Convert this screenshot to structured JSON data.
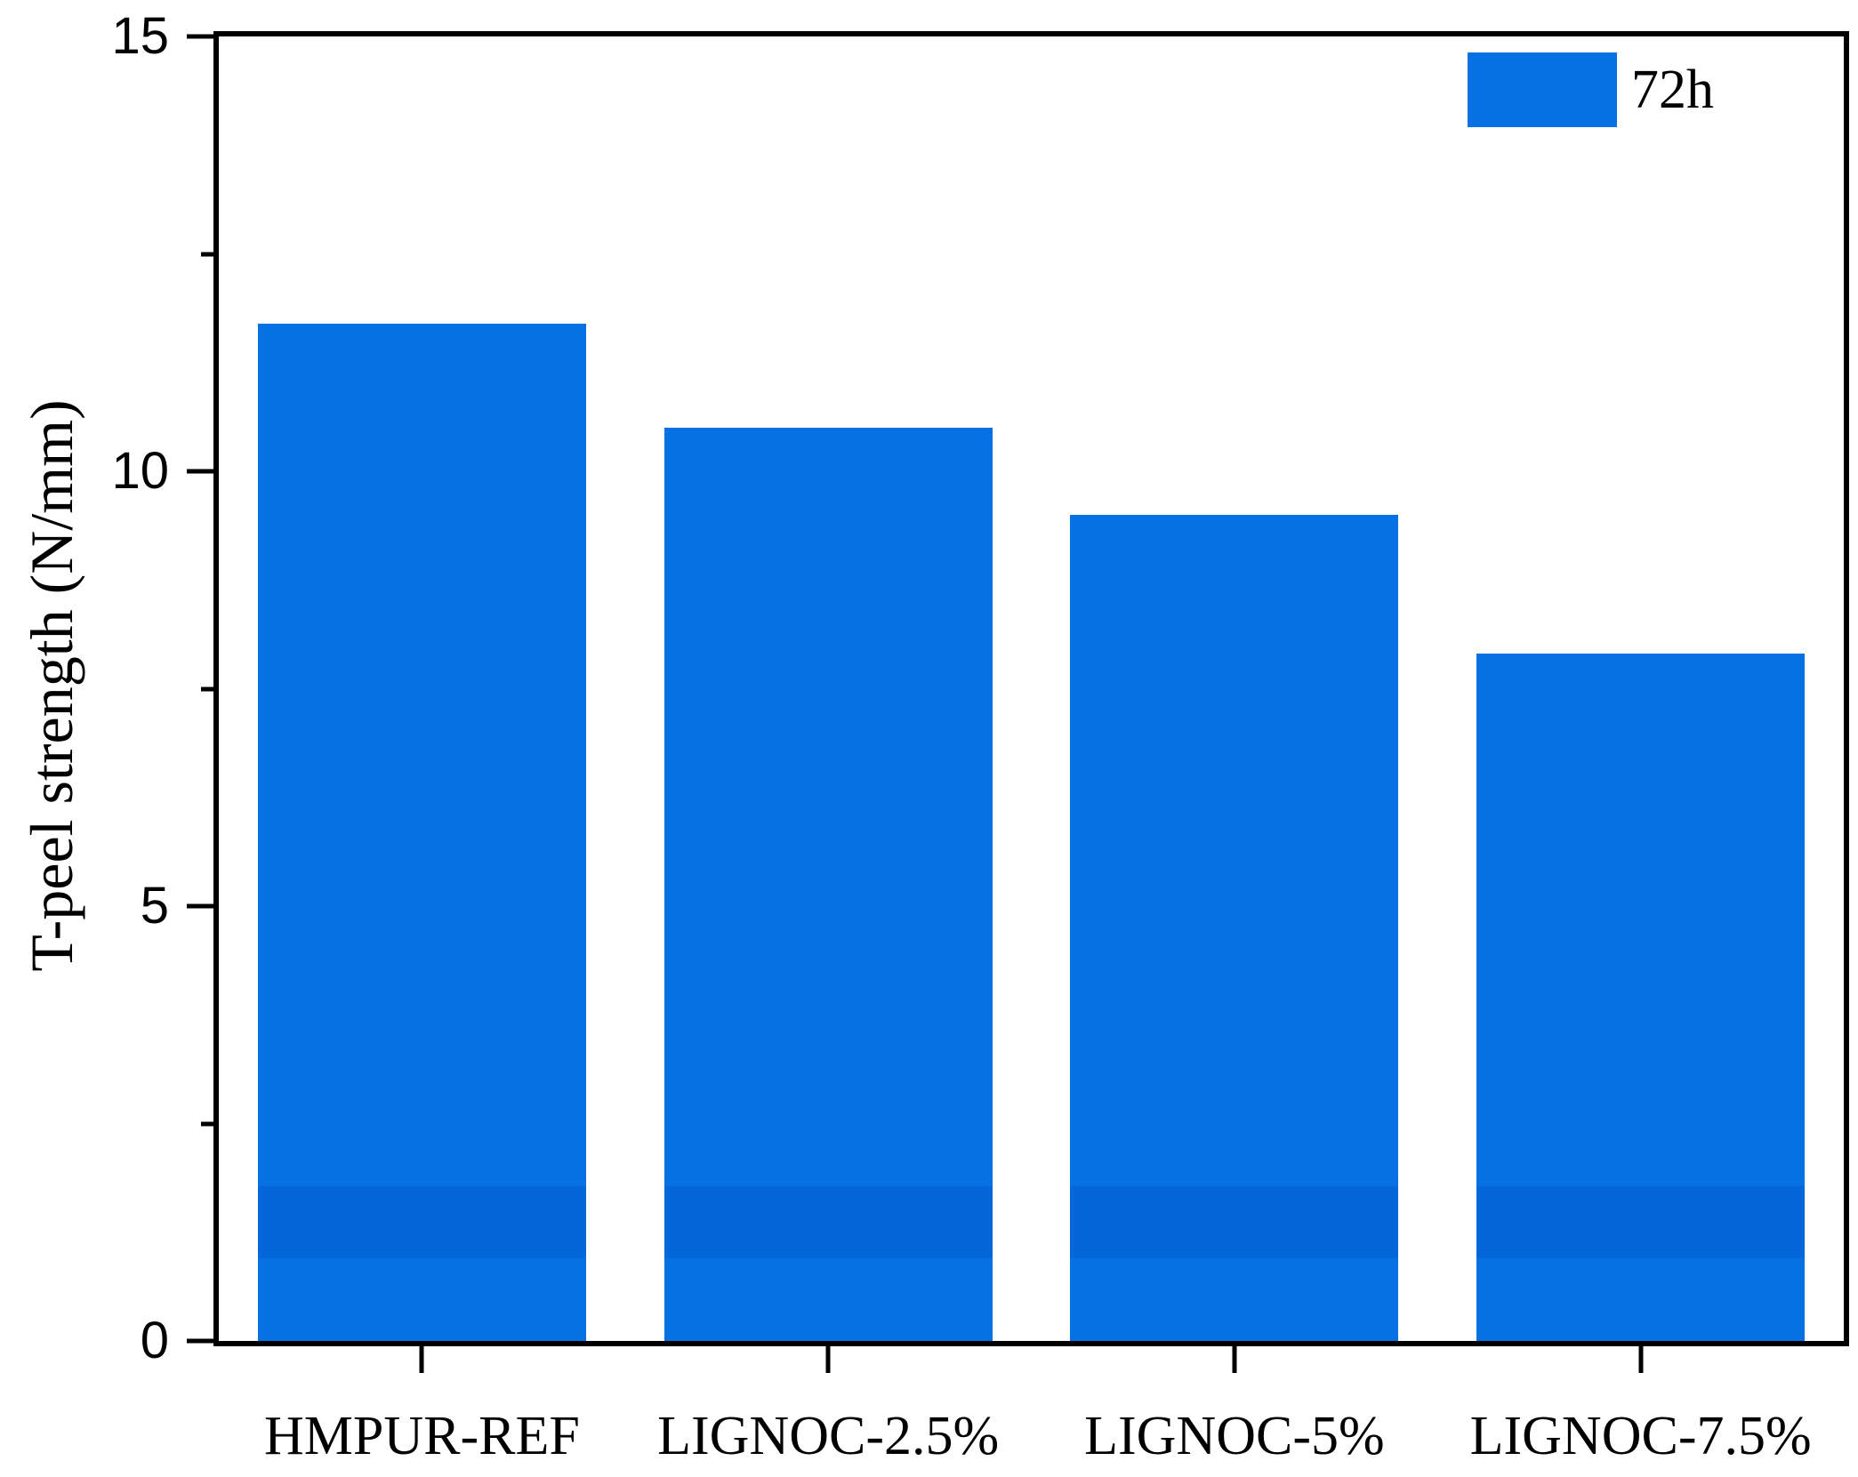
{
  "chart_data": {
    "type": "bar",
    "title": "",
    "categories": [
      "HMPUR-REF",
      "LIGNOC-2.5%",
      "LIGNOC-5%",
      "LIGNOC-7.5%"
    ],
    "series": [
      {
        "name": "72h",
        "values": [
          11.7,
          10.5,
          9.5,
          7.9
        ]
      }
    ],
    "xlabel": "",
    "ylabel": "T-peel strength (N/mm)",
    "ylim": [
      0,
      15
    ],
    "y_major_ticks": [
      0,
      5,
      10,
      15
    ],
    "y_minor_ticks": [
      2.5,
      7.5,
      12.5
    ],
    "grid": false,
    "legend_position": "top-right",
    "bar_color": "#0671E2",
    "bar_band_color": "#0366D9",
    "bar_band_value_range": [
      0.95,
      1.78
    ],
    "axis_color": "#000000",
    "background_color": "#FFFFFF"
  },
  "legend": {
    "items": [
      {
        "label": "72h",
        "color": "#0671E2"
      }
    ]
  }
}
